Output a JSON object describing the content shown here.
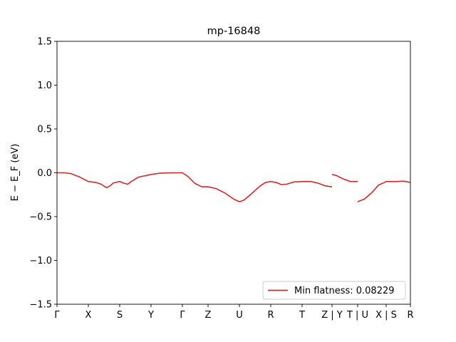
{
  "chart_data": {
    "type": "line",
    "title": "mp-16848",
    "xlabel": "",
    "ylabel": "E − E_F (eV)",
    "ylim": [
      -1.5,
      1.5
    ],
    "y_ticks": [
      -1.5,
      -1.0,
      -0.5,
      0.0,
      0.5,
      1.0,
      1.5
    ],
    "y_tick_labels": [
      "−1.5",
      "−1.0",
      "−0.5",
      "0.0",
      "0.5",
      "1.0",
      "1.5"
    ],
    "x_ticks": [
      {
        "label": "Γ",
        "pos": 0.0
      },
      {
        "label": "X",
        "pos": 0.0887
      },
      {
        "label": "S",
        "pos": 0.1774
      },
      {
        "label": "Y",
        "pos": 0.2661
      },
      {
        "label": "Γ",
        "pos": 0.3548
      },
      {
        "label": "Z",
        "pos": 0.4274
      },
      {
        "label": "U",
        "pos": 0.5161
      },
      {
        "label": "R",
        "pos": 0.6048
      },
      {
        "label": "T",
        "pos": 0.6935
      },
      {
        "label": "Z | Y",
        "pos": 0.7782
      },
      {
        "label": "T | U",
        "pos": 0.8508
      },
      {
        "label": "X | S",
        "pos": 0.9315
      },
      {
        "label": "R",
        "pos": 1.0
      }
    ],
    "grid": false,
    "legend": {
      "location": "lower-right"
    },
    "series": [
      {
        "name": "Min flatness: 0.08229",
        "color": "#d62728",
        "segments": [
          [
            [
              0.0,
              0.0
            ],
            [
              0.02,
              0.0
            ],
            [
              0.04,
              -0.01
            ],
            [
              0.065,
              -0.05
            ],
            [
              0.0887,
              -0.1
            ],
            [
              0.11,
              -0.11
            ],
            [
              0.125,
              -0.13
            ],
            [
              0.14,
              -0.17
            ],
            [
              0.15,
              -0.15
            ],
            [
              0.16,
              -0.115
            ],
            [
              0.1774,
              -0.1
            ],
            [
              0.19,
              -0.12
            ],
            [
              0.2,
              -0.13
            ],
            [
              0.21,
              -0.1
            ],
            [
              0.23,
              -0.05
            ],
            [
              0.2661,
              -0.02
            ],
            [
              0.29,
              -0.005
            ],
            [
              0.33,
              0.0
            ],
            [
              0.3548,
              0.0
            ],
            [
              0.37,
              -0.04
            ],
            [
              0.39,
              -0.12
            ],
            [
              0.41,
              -0.16
            ],
            [
              0.4274,
              -0.16
            ],
            [
              0.45,
              -0.18
            ],
            [
              0.475,
              -0.23
            ],
            [
              0.5,
              -0.3
            ],
            [
              0.5161,
              -0.33
            ],
            [
              0.53,
              -0.31
            ],
            [
              0.55,
              -0.24
            ],
            [
              0.575,
              -0.15
            ],
            [
              0.59,
              -0.11
            ],
            [
              0.6048,
              -0.1
            ],
            [
              0.62,
              -0.11
            ],
            [
              0.635,
              -0.135
            ],
            [
              0.65,
              -0.13
            ],
            [
              0.67,
              -0.105
            ],
            [
              0.6935,
              -0.1
            ],
            [
              0.72,
              -0.1
            ],
            [
              0.74,
              -0.12
            ],
            [
              0.76,
              -0.15
            ],
            [
              0.7782,
              -0.16
            ]
          ],
          [
            [
              0.7782,
              -0.02
            ],
            [
              0.79,
              -0.03
            ],
            [
              0.81,
              -0.07
            ],
            [
              0.83,
              -0.1
            ],
            [
              0.8508,
              -0.1
            ]
          ],
          [
            [
              0.8508,
              -0.33
            ],
            [
              0.87,
              -0.3
            ],
            [
              0.89,
              -0.23
            ],
            [
              0.91,
              -0.14
            ],
            [
              0.9315,
              -0.1
            ],
            [
              0.96,
              -0.1
            ],
            [
              0.98,
              -0.095
            ],
            [
              1.0,
              -0.11
            ]
          ]
        ]
      }
    ]
  }
}
